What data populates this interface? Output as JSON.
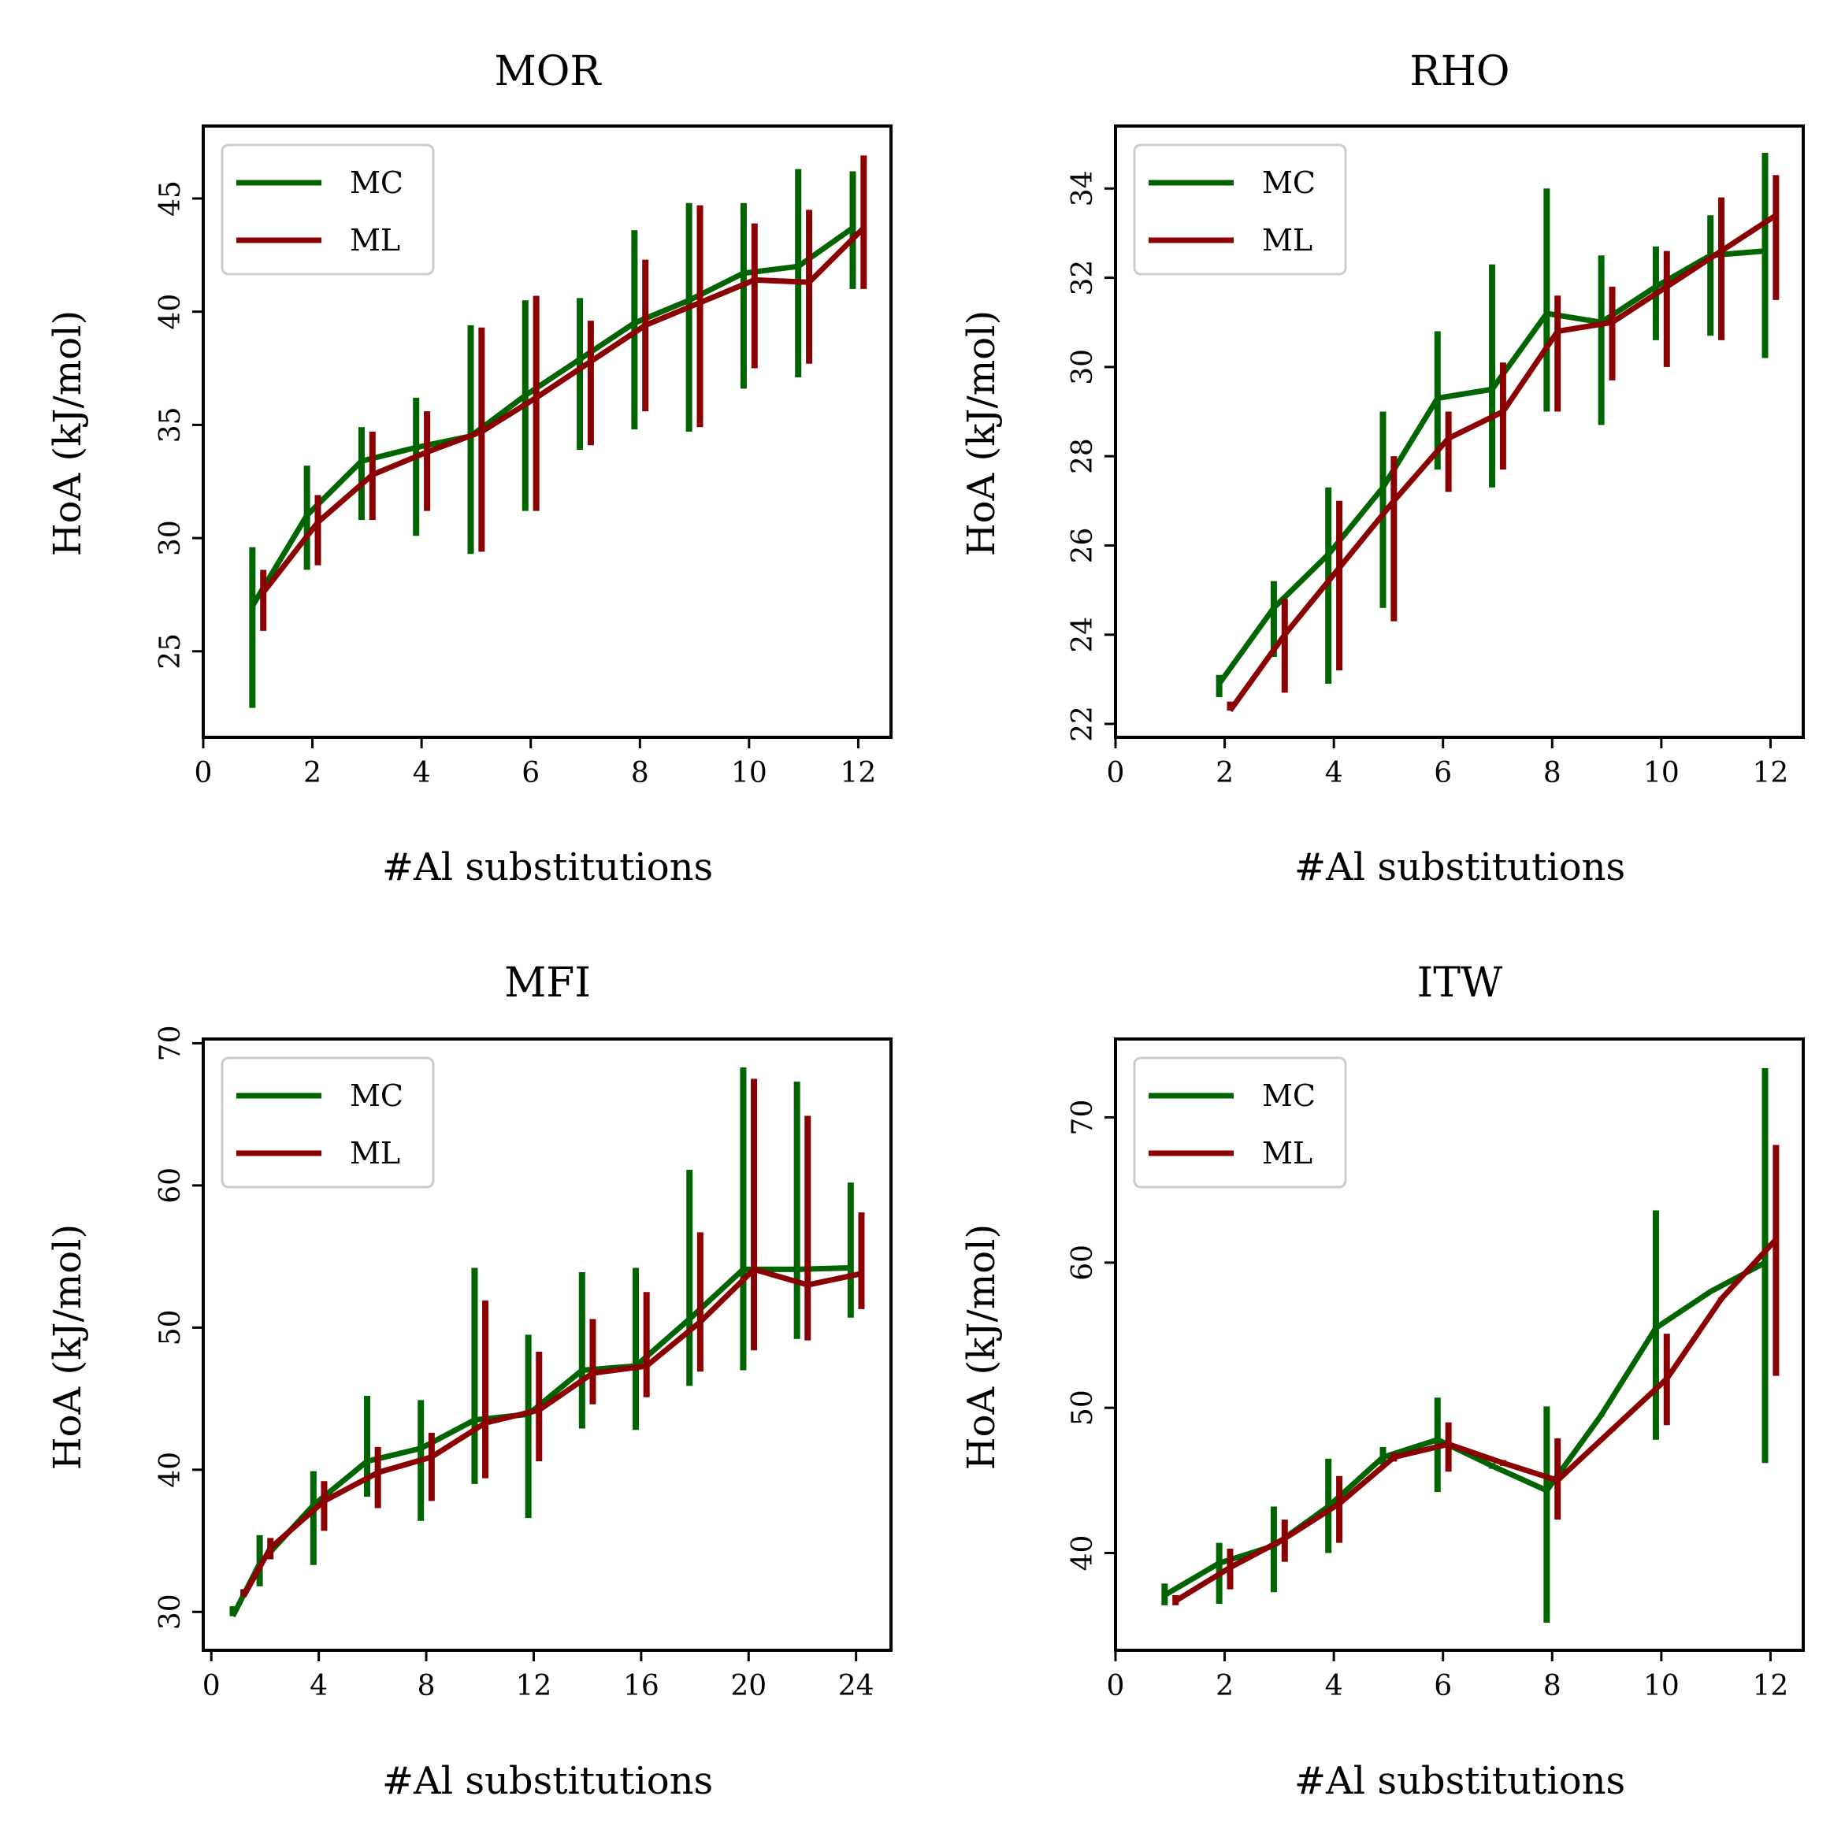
{
  "colors": {
    "MC": "#006400",
    "ML": "#8b0000"
  },
  "chart_data": [
    {
      "type": "line",
      "title": "MOR",
      "xlabel": "#Al substitutions",
      "ylabel": "HoA (kJ/mol)",
      "xlim": [
        0,
        12.6
      ],
      "ylim": [
        21.2,
        48.2
      ],
      "xticks": [
        0,
        2,
        4,
        6,
        8,
        10,
        12
      ],
      "yticks": [
        25,
        30,
        35,
        40,
        45
      ],
      "legend": {
        "position": "top-left",
        "entries": [
          "MC",
          "ML"
        ]
      },
      "series": [
        {
          "name": "MC",
          "x": [
            0.9,
            1.9,
            2.9,
            3.9,
            4.9,
            5.9,
            6.9,
            7.9,
            8.9,
            9.9,
            10.9,
            11.9
          ],
          "y": [
            27.0,
            31.0,
            33.4,
            34.0,
            34.5,
            36.3,
            37.9,
            39.5,
            40.5,
            41.7,
            42.0,
            43.7
          ],
          "err_low": [
            22.5,
            28.6,
            30.8,
            30.1,
            29.3,
            31.2,
            33.9,
            34.8,
            34.7,
            36.6,
            37.1,
            41.0
          ],
          "err_high": [
            29.6,
            33.2,
            34.9,
            36.2,
            39.4,
            40.5,
            40.6,
            43.6,
            44.8,
            44.8,
            46.3,
            46.2
          ]
        },
        {
          "name": "ML",
          "x": [
            1.1,
            2.1,
            3.1,
            4.1,
            5.1,
            6.1,
            7.1,
            8.1,
            9.1,
            10.1,
            11.1,
            12.1
          ],
          "y": [
            27.6,
            30.7,
            32.8,
            33.8,
            34.7,
            36.2,
            37.8,
            39.4,
            40.4,
            41.4,
            41.3,
            43.7
          ],
          "err_low": [
            25.9,
            28.8,
            30.8,
            31.2,
            29.4,
            31.2,
            34.1,
            35.6,
            34.9,
            37.5,
            37.7,
            41.0
          ],
          "err_high": [
            28.6,
            31.9,
            34.7,
            35.6,
            39.3,
            40.7,
            39.6,
            42.3,
            44.7,
            43.9,
            44.5,
            46.9
          ]
        }
      ]
    },
    {
      "type": "line",
      "title": "RHO",
      "xlabel": "#Al substitutions",
      "ylabel": "HoA (kJ/mol)",
      "xlim": [
        0,
        12.6
      ],
      "ylim": [
        21.7,
        35.4
      ],
      "xticks": [
        0,
        2,
        4,
        6,
        8,
        10,
        12
      ],
      "yticks": [
        22,
        24,
        26,
        28,
        30,
        32,
        34
      ],
      "legend": {
        "position": "top-left",
        "entries": [
          "MC",
          "ML"
        ]
      },
      "series": [
        {
          "name": "MC",
          "x": [
            1.9,
            2.9,
            3.9,
            4.9,
            5.9,
            6.9,
            7.9,
            8.9,
            9.9,
            10.9,
            11.9
          ],
          "y": [
            22.9,
            24.6,
            25.8,
            27.3,
            29.3,
            29.5,
            31.2,
            31.0,
            31.8,
            32.5,
            32.6
          ],
          "err_low": [
            22.6,
            23.5,
            22.9,
            24.6,
            27.7,
            27.3,
            29.0,
            28.7,
            30.6,
            30.7,
            30.2
          ],
          "err_high": [
            23.1,
            25.2,
            27.3,
            29.0,
            30.8,
            32.3,
            34.0,
            32.5,
            32.7,
            33.4,
            34.8
          ]
        },
        {
          "name": "ML",
          "x": [
            2.1,
            3.1,
            4.1,
            5.1,
            6.1,
            7.1,
            8.1,
            9.1,
            10.1,
            11.1,
            12.1
          ],
          "y": [
            22.3,
            24.0,
            25.5,
            27.0,
            28.4,
            29.0,
            30.8,
            31.0,
            31.8,
            32.6,
            33.4
          ],
          "err_low": [
            22.3,
            22.7,
            23.2,
            24.3,
            27.2,
            27.7,
            29.0,
            29.7,
            30.0,
            30.6,
            31.5
          ],
          "err_high": [
            22.5,
            24.8,
            27.0,
            28.0,
            29.0,
            30.1,
            31.6,
            31.8,
            32.6,
            33.8,
            34.3
          ]
        }
      ]
    },
    {
      "type": "line",
      "title": "MFI",
      "xlabel": "#Al substitutions",
      "ylabel": "HoA (kJ/mol)",
      "xlim": [
        -0.3,
        25.3
      ],
      "ylim": [
        27.3,
        70.3
      ],
      "xticks": [
        0,
        4,
        8,
        12,
        16,
        20,
        24
      ],
      "yticks": [
        30,
        40,
        50,
        60,
        70
      ],
      "legend": {
        "position": "top-left",
        "entries": [
          "MC",
          "ML"
        ]
      },
      "series": [
        {
          "name": "MC",
          "x": [
            0.8,
            1.8,
            3.8,
            5.8,
            7.8,
            9.8,
            11.8,
            13.8,
            15.8,
            17.8,
            19.8,
            21.8,
            23.8
          ],
          "y": [
            29.7,
            33.4,
            37.5,
            40.6,
            41.5,
            43.5,
            43.9,
            47.0,
            47.3,
            50.6,
            54.1,
            54.1,
            54.2
          ],
          "err_low": [
            29.7,
            31.8,
            33.3,
            38.1,
            36.4,
            39.0,
            36.6,
            42.9,
            42.8,
            45.9,
            47.0,
            49.2,
            50.7
          ],
          "err_high": [
            30.4,
            35.4,
            39.9,
            45.2,
            44.9,
            54.2,
            49.5,
            53.9,
            54.2,
            61.1,
            68.3,
            67.3,
            60.2
          ]
        },
        {
          "name": "ML",
          "x": [
            1.2,
            2.2,
            4.2,
            6.2,
            8.2,
            10.2,
            12.2,
            14.2,
            16.2,
            18.2,
            20.2,
            22.2,
            24.2
          ],
          "y": [
            31.1,
            34.5,
            37.8,
            39.8,
            40.9,
            43.3,
            44.2,
            46.8,
            47.3,
            50.4,
            54.1,
            53.0,
            53.8
          ],
          "err_low": [
            31.1,
            33.7,
            35.7,
            37.3,
            37.8,
            39.4,
            40.6,
            44.6,
            45.1,
            46.9,
            48.4,
            49.1,
            51.3
          ],
          "err_high": [
            31.6,
            35.2,
            39.2,
            41.6,
            42.6,
            51.9,
            48.3,
            50.6,
            52.5,
            56.7,
            67.5,
            64.9,
            58.1
          ]
        }
      ]
    },
    {
      "type": "line",
      "title": "ITW",
      "xlabel": "#Al substitutions",
      "ylabel": "HoA (kJ/mol)",
      "xlim": [
        0,
        12.6
      ],
      "ylim": [
        33.3,
        75.4
      ],
      "xticks": [
        0,
        2,
        4,
        6,
        8,
        10,
        12
      ],
      "yticks": [
        40,
        50,
        60,
        70
      ],
      "legend": {
        "position": "top-left",
        "entries": [
          "MC",
          "ML"
        ]
      },
      "series": [
        {
          "name": "MC",
          "x": [
            0.9,
            1.9,
            2.9,
            3.9,
            4.9,
            5.9,
            6.9,
            7.9,
            8.9,
            9.9,
            10.9,
            11.9
          ],
          "y": [
            37.1,
            39.3,
            40.5,
            43.2,
            46.6,
            47.8,
            46.0,
            44.3,
            49.5,
            55.5,
            58.0,
            60.0
          ],
          "err_low": [
            36.4,
            36.5,
            37.3,
            40.0,
            46.1,
            44.2,
            45.8,
            35.2,
            49.4,
            47.8,
            57.9,
            46.2
          ],
          "err_high": [
            37.9,
            40.7,
            43.2,
            46.5,
            47.3,
            50.7,
            46.2,
            50.1,
            49.6,
            63.6,
            58.1,
            73.4
          ]
        },
        {
          "name": "ML",
          "x": [
            1.1,
            2.1,
            3.1,
            4.1,
            5.1,
            6.1,
            7.1,
            8.1,
            9.1,
            10.1,
            11.1,
            12.1
          ],
          "y": [
            36.7,
            39.0,
            41.0,
            43.4,
            46.6,
            47.5,
            46.2,
            45.0,
            48.5,
            52.0,
            57.5,
            61.6
          ],
          "err_low": [
            36.4,
            37.5,
            39.4,
            40.7,
            46.3,
            45.6,
            46.0,
            42.3,
            48.4,
            48.8,
            57.4,
            52.2
          ],
          "err_high": [
            37.1,
            40.3,
            42.3,
            45.3,
            46.9,
            49.0,
            46.4,
            47.9,
            48.6,
            55.1,
            57.6,
            68.1
          ]
        }
      ]
    }
  ]
}
